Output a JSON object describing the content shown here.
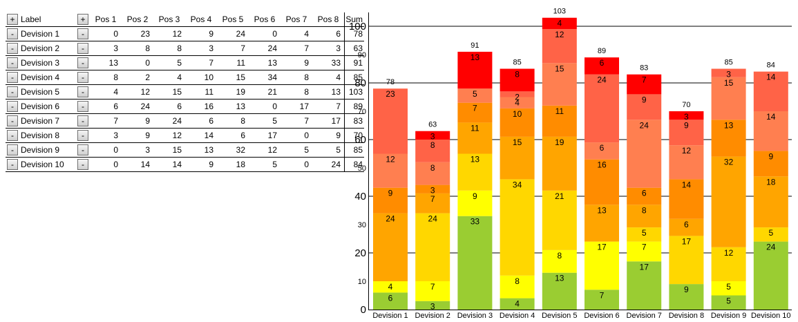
{
  "table": {
    "add_row_button": "+",
    "add_col_button": "+",
    "remove_button": "-",
    "label_header": "Label",
    "pos_headers": [
      "Pos 1",
      "Pos 2",
      "Pos 3",
      "Pos 4",
      "Pos 5",
      "Pos 6",
      "Pos 7",
      "Pos 8"
    ],
    "sum_header": "Sum",
    "rows": [
      {
        "label": "Devision 1",
        "values": [
          0,
          23,
          12,
          9,
          24,
          0,
          4,
          6
        ],
        "sum": 78
      },
      {
        "label": "Devision 2",
        "values": [
          3,
          8,
          8,
          3,
          7,
          24,
          7,
          3
        ],
        "sum": 63
      },
      {
        "label": "Devision 3",
        "values": [
          13,
          0,
          5,
          7,
          11,
          13,
          9,
          33
        ],
        "sum": 91
      },
      {
        "label": "Devision 4",
        "values": [
          8,
          2,
          4,
          10,
          15,
          34,
          8,
          4
        ],
        "sum": 85
      },
      {
        "label": "Devision 5",
        "values": [
          4,
          12,
          15,
          11,
          19,
          21,
          8,
          13
        ],
        "sum": 103
      },
      {
        "label": "Devision 6",
        "values": [
          6,
          24,
          6,
          16,
          13,
          0,
          17,
          7
        ],
        "sum": 89
      },
      {
        "label": "Devision 7",
        "values": [
          7,
          9,
          24,
          6,
          8,
          5,
          7,
          17
        ],
        "sum": 83
      },
      {
        "label": "Devision 8",
        "values": [
          3,
          9,
          12,
          14,
          6,
          17,
          0,
          9
        ],
        "sum": 70
      },
      {
        "label": "Devision 9",
        "values": [
          0,
          3,
          15,
          13,
          32,
          12,
          5,
          5
        ],
        "sum": 85
      },
      {
        "label": "Devision 10",
        "values": [
          0,
          14,
          14,
          9,
          18,
          5,
          0,
          24
        ],
        "sum": 84
      }
    ]
  },
  "chart_data": {
    "type": "bar",
    "stacked": true,
    "categories": [
      "Devision 1",
      "Devision 2",
      "Devision 3",
      "Devision 4",
      "Devision 5",
      "Devision 6",
      "Devision 7",
      "Devision 8",
      "Devision 9",
      "Devision 10"
    ],
    "series": [
      {
        "name": "Pos 8",
        "color": "#9acd32",
        "values": [
          6,
          3,
          33,
          4,
          13,
          7,
          17,
          9,
          5,
          24
        ]
      },
      {
        "name": "Pos 7",
        "color": "#ffff00",
        "values": [
          4,
          7,
          9,
          8,
          8,
          17,
          7,
          0,
          5,
          0
        ]
      },
      {
        "name": "Pos 6",
        "color": "#ffd700",
        "values": [
          0,
          24,
          13,
          34,
          21,
          0,
          5,
          17,
          12,
          5
        ]
      },
      {
        "name": "Pos 5",
        "color": "#ffa500",
        "values": [
          24,
          7,
          11,
          15,
          19,
          13,
          8,
          6,
          32,
          18
        ]
      },
      {
        "name": "Pos 4",
        "color": "#ff8c00",
        "values": [
          9,
          3,
          7,
          10,
          11,
          16,
          6,
          14,
          13,
          9
        ]
      },
      {
        "name": "Pos 3",
        "color": "#ff7f50",
        "values": [
          12,
          8,
          5,
          4,
          15,
          6,
          24,
          12,
          15,
          14
        ]
      },
      {
        "name": "Pos 2",
        "color": "#ff6347",
        "values": [
          23,
          8,
          0,
          2,
          12,
          24,
          9,
          9,
          3,
          14
        ]
      },
      {
        "name": "Pos 1",
        "color": "#ff0000",
        "values": [
          0,
          3,
          13,
          8,
          4,
          6,
          7,
          3,
          0,
          0
        ]
      }
    ],
    "totals": [
      78,
      63,
      91,
      85,
      103,
      89,
      83,
      70,
      85,
      84
    ],
    "y_ticks_major": [
      0,
      20,
      40,
      60,
      80,
      100
    ],
    "y_ticks_minor": [
      10,
      30,
      50,
      70,
      90
    ],
    "ylim": [
      0,
      103
    ],
    "title": "",
    "xlabel": "",
    "ylabel": ""
  }
}
